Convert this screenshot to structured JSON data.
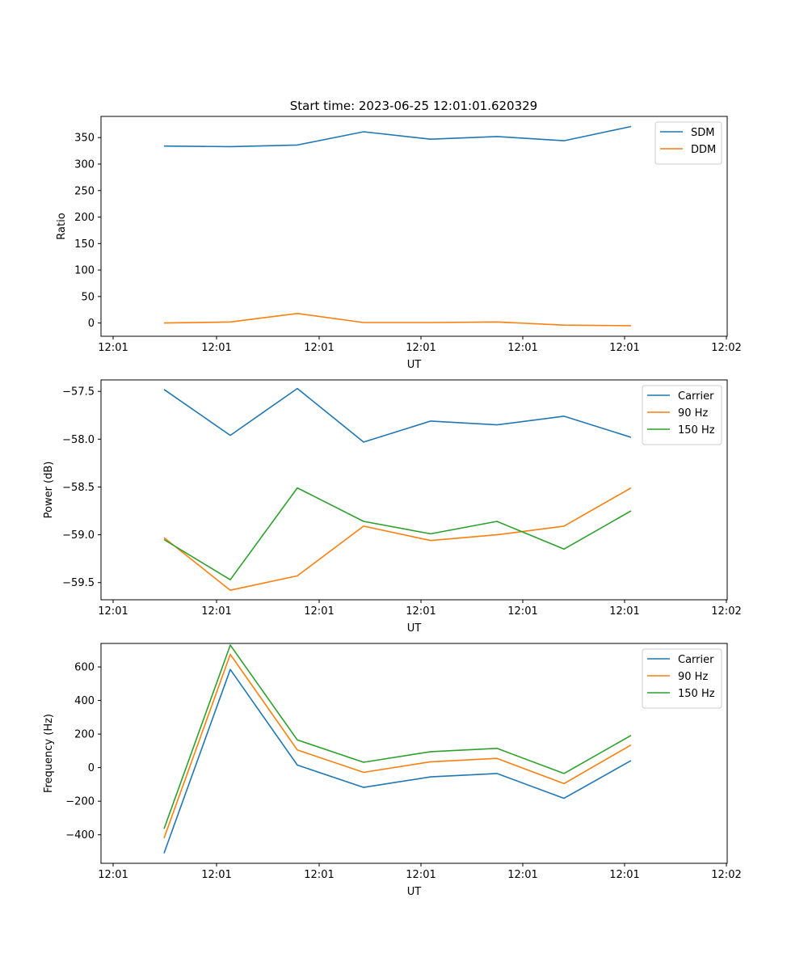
{
  "figure_title": "Start time: 2023-06-25 12:01:01.620329",
  "colors": {
    "blue": "#1f77b4",
    "orange": "#ff7f0e",
    "green": "#2ca02c"
  },
  "chart_data": [
    {
      "type": "line",
      "xlabel": "UT",
      "ylabel": "Ratio",
      "x_tick_labels": [
        "12:01",
        "12:01",
        "12:01",
        "12:01",
        "12:01",
        "12:01",
        "12:02"
      ],
      "y_ticks": [
        0,
        50,
        100,
        150,
        200,
        250,
        300,
        350
      ],
      "y_tick_labels": [
        "0",
        "50",
        "100",
        "150",
        "200",
        "250",
        "300",
        "350"
      ],
      "ylim": [
        -25,
        390
      ],
      "legend_position": "top-right",
      "grid": false,
      "series": [
        {
          "name": "SDM",
          "color": "#1f77b4",
          "values": [
            334,
            333,
            336,
            361,
            347,
            352,
            344,
            371
          ]
        },
        {
          "name": "DDM",
          "color": "#ff7f0e",
          "values": [
            0,
            2,
            18,
            1,
            1,
            2,
            -4,
            -5
          ]
        }
      ]
    },
    {
      "type": "line",
      "xlabel": "UT",
      "ylabel": "Power (dB)",
      "x_tick_labels": [
        "12:01",
        "12:01",
        "12:01",
        "12:01",
        "12:01",
        "12:01",
        "12:02"
      ],
      "y_ticks": [
        -57.5,
        -58.0,
        -58.5,
        -59.0,
        -59.5
      ],
      "y_tick_labels": [
        "−57.5",
        "−58.0",
        "−58.5",
        "−59.0",
        "−59.5"
      ],
      "ylim": [
        -59.68,
        -57.38
      ],
      "legend_position": "top-right",
      "grid": false,
      "series": [
        {
          "name": "Carrier",
          "color": "#1f77b4",
          "values": [
            -57.48,
            -57.96,
            -57.47,
            -58.03,
            -57.81,
            -57.85,
            -57.76,
            -57.98
          ]
        },
        {
          "name": "90 Hz",
          "color": "#ff7f0e",
          "values": [
            -59.03,
            -59.58,
            -59.43,
            -58.91,
            -59.06,
            -59.0,
            -58.91,
            -58.51
          ]
        },
        {
          "name": "150 Hz",
          "color": "#2ca02c",
          "values": [
            -59.05,
            -59.47,
            -58.51,
            -58.86,
            -58.99,
            -58.86,
            -59.15,
            -58.75
          ]
        }
      ]
    },
    {
      "type": "line",
      "xlabel": "UT",
      "ylabel": "Frequency (Hz)",
      "x_tick_labels": [
        "12:01",
        "12:01",
        "12:01",
        "12:01",
        "12:01",
        "12:01",
        "12:02"
      ],
      "y_ticks": [
        -400,
        -200,
        0,
        200,
        400,
        600
      ],
      "y_tick_labels": [
        "−400",
        "−200",
        "0",
        "200",
        "400",
        "600"
      ],
      "ylim": [
        -570,
        740
      ],
      "legend_position": "top-right",
      "grid": false,
      "series": [
        {
          "name": "Carrier",
          "color": "#1f77b4",
          "values": [
            -510,
            585,
            15,
            -118,
            -55,
            -35,
            -183,
            42
          ]
        },
        {
          "name": "90 Hz",
          "color": "#ff7f0e",
          "values": [
            -420,
            675,
            105,
            -28,
            35,
            55,
            -95,
            135
          ]
        },
        {
          "name": "150 Hz",
          "color": "#2ca02c",
          "values": [
            -365,
            730,
            165,
            32,
            95,
            115,
            -35,
            192
          ]
        }
      ]
    }
  ]
}
